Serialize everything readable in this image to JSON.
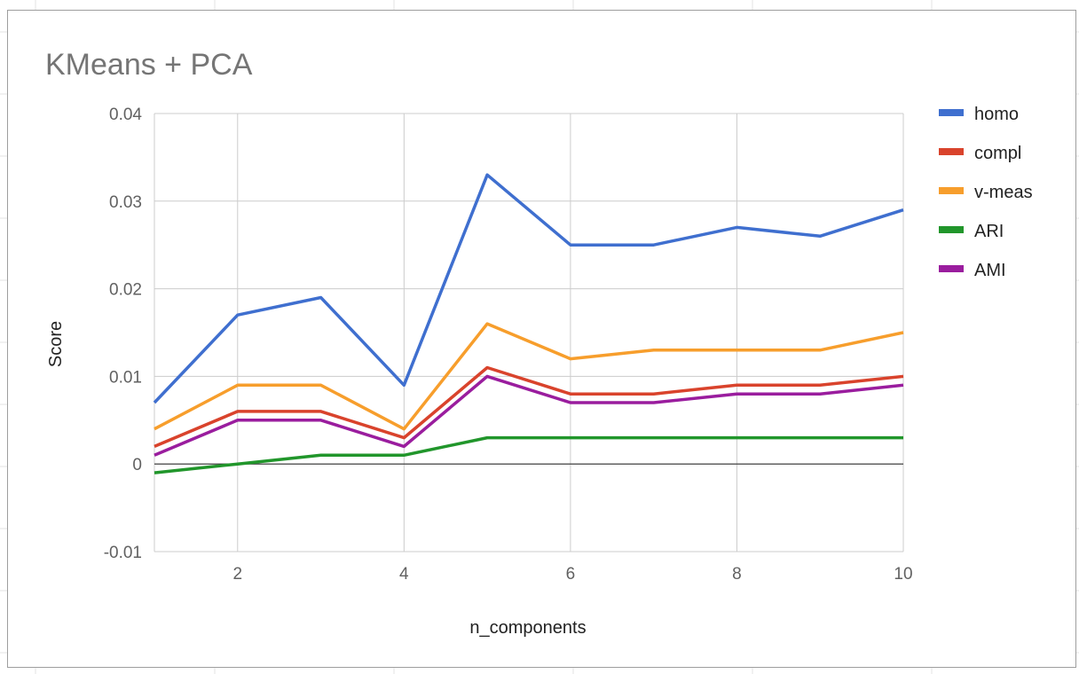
{
  "chart_data": {
    "type": "line",
    "title": "KMeans + PCA",
    "xlabel": "n_components",
    "ylabel": "Score",
    "x": [
      1,
      2,
      3,
      4,
      5,
      6,
      7,
      8,
      9,
      10
    ],
    "xlim": [
      1,
      10
    ],
    "ylim": [
      -0.01,
      0.04
    ],
    "x_ticks": [
      "2",
      "4",
      "6",
      "8",
      "10"
    ],
    "y_ticks": [
      "0.04",
      "0.03",
      "0.02",
      "0.01",
      "0",
      "-0.01"
    ],
    "grid": true,
    "legend_position": "right",
    "series": [
      {
        "name": "homo",
        "color": "#3f6fcf",
        "values": [
          0.007,
          0.017,
          0.019,
          0.009,
          0.033,
          0.025,
          0.025,
          0.027,
          0.026,
          0.029
        ]
      },
      {
        "name": "compl",
        "color": "#d9432c",
        "values": [
          0.002,
          0.006,
          0.006,
          0.003,
          0.011,
          0.008,
          0.008,
          0.009,
          0.009,
          0.01
        ]
      },
      {
        "name": "v-meas",
        "color": "#f79e2c",
        "values": [
          0.004,
          0.009,
          0.009,
          0.004,
          0.016,
          0.012,
          0.013,
          0.013,
          0.013,
          0.015
        ]
      },
      {
        "name": "ARI",
        "color": "#21962b",
        "values": [
          -0.001,
          0.0,
          0.001,
          0.001,
          0.003,
          0.003,
          0.003,
          0.003,
          0.003,
          0.003
        ]
      },
      {
        "name": "AMI",
        "color": "#9a1d9e",
        "values": [
          0.001,
          0.005,
          0.005,
          0.002,
          0.01,
          0.007,
          0.007,
          0.008,
          0.008,
          0.009
        ]
      }
    ]
  }
}
